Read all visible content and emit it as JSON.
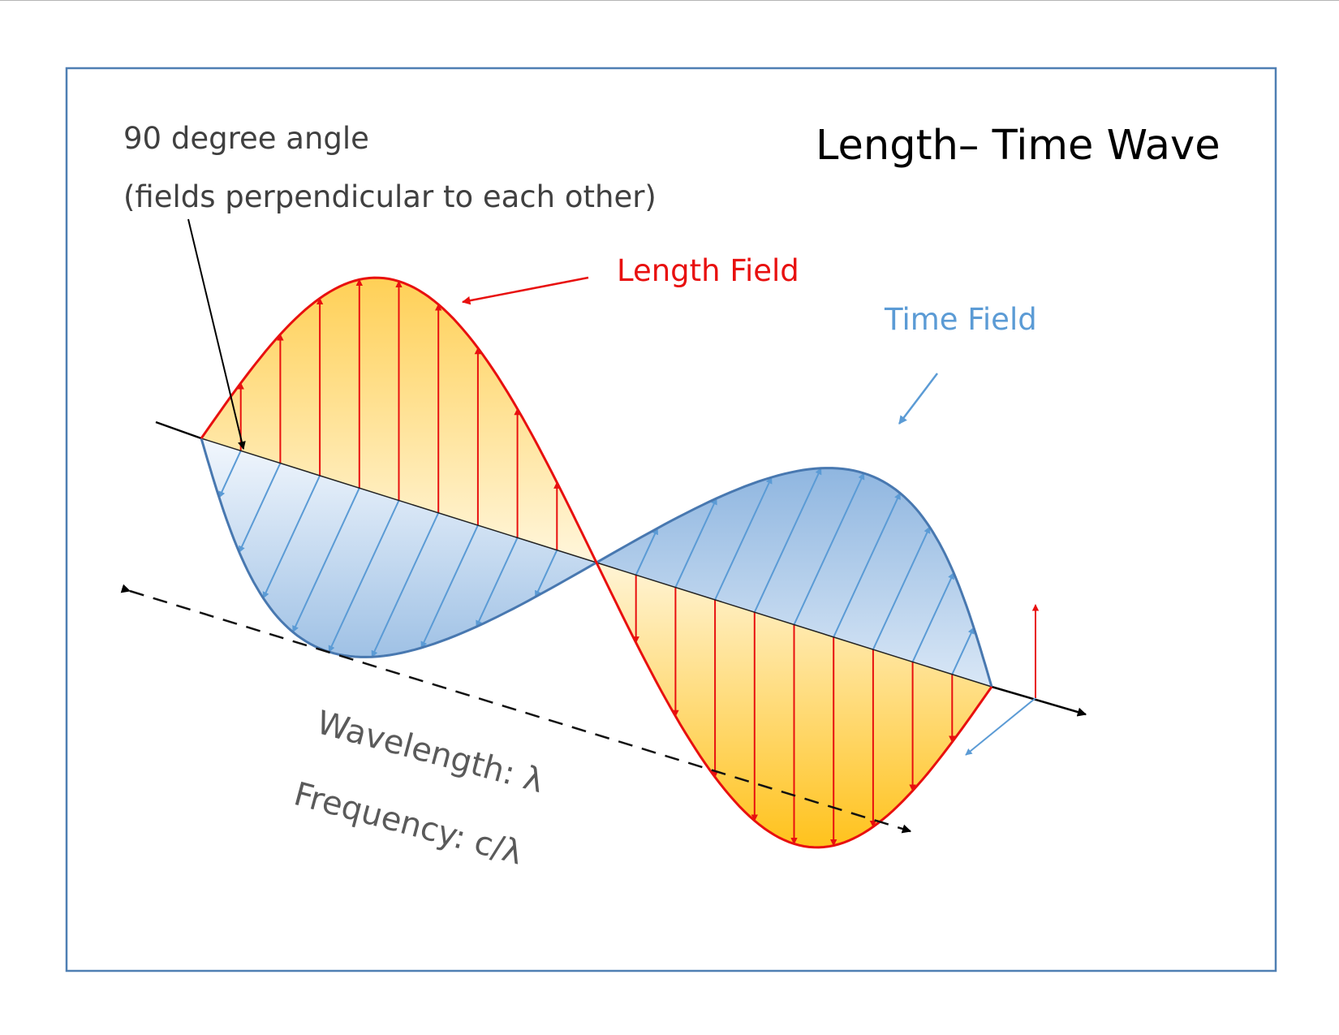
{
  "title": "Length– Time Wave",
  "annotation": {
    "line1": "90 degree angle",
    "line2": "(fields perpendicular to each other)"
  },
  "labels": {
    "length_field": "Length Field",
    "time_field": "Time Field",
    "wavelength": "Wavelength: λ",
    "frequency": "Frequency: c/λ"
  },
  "colors": {
    "frame": "#4f7fb3",
    "length": "#e8100f",
    "time": "#5b9bd5",
    "time_edge": "#4878b0",
    "fill_yellow": "#ffc93b",
    "fill_blue": "#9dbfe3",
    "axis": "#000000",
    "label_gray": "#5a5a5a"
  }
}
